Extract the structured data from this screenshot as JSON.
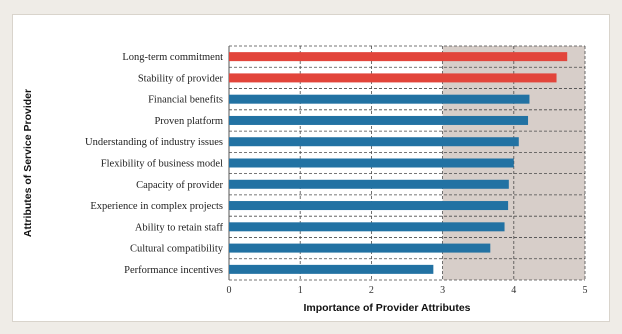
{
  "chart_data": {
    "type": "bar",
    "orientation": "horizontal",
    "categories": [
      "Long-term commitment",
      "Stability of provider",
      "Financial benefits",
      "Proven platform",
      "Understanding of industry issues",
      "Flexibility of business model",
      "Capacity of provider",
      "Experience in complex projects",
      "Ability to retain staff",
      "Cultural compatibility",
      "Performance incentives"
    ],
    "values": [
      4.75,
      4.6,
      4.22,
      4.2,
      4.07,
      4.0,
      3.93,
      3.92,
      3.87,
      3.67,
      2.87
    ],
    "bar_colors": [
      "#e2453b",
      "#e2453b",
      "#2272a3",
      "#2272a3",
      "#2272a3",
      "#2272a3",
      "#2272a3",
      "#2272a3",
      "#2272a3",
      "#2272a3",
      "#2272a3"
    ],
    "xlabel": "Importance of Provider Attributes",
    "ylabel": "Attributes of Service Provider",
    "xlim": [
      0,
      5
    ],
    "xticks": [
      "0",
      "1",
      "2",
      "3",
      "4",
      "5"
    ],
    "grid": "dashed horizontal and vertical",
    "highlight_region": [
      3,
      5
    ],
    "colors": {
      "plot_background": "#d7cec9",
      "grid_line": "#4a4a4a",
      "highlight_bar": "#e2453b",
      "normal_bar": "#2272a3"
    }
  }
}
